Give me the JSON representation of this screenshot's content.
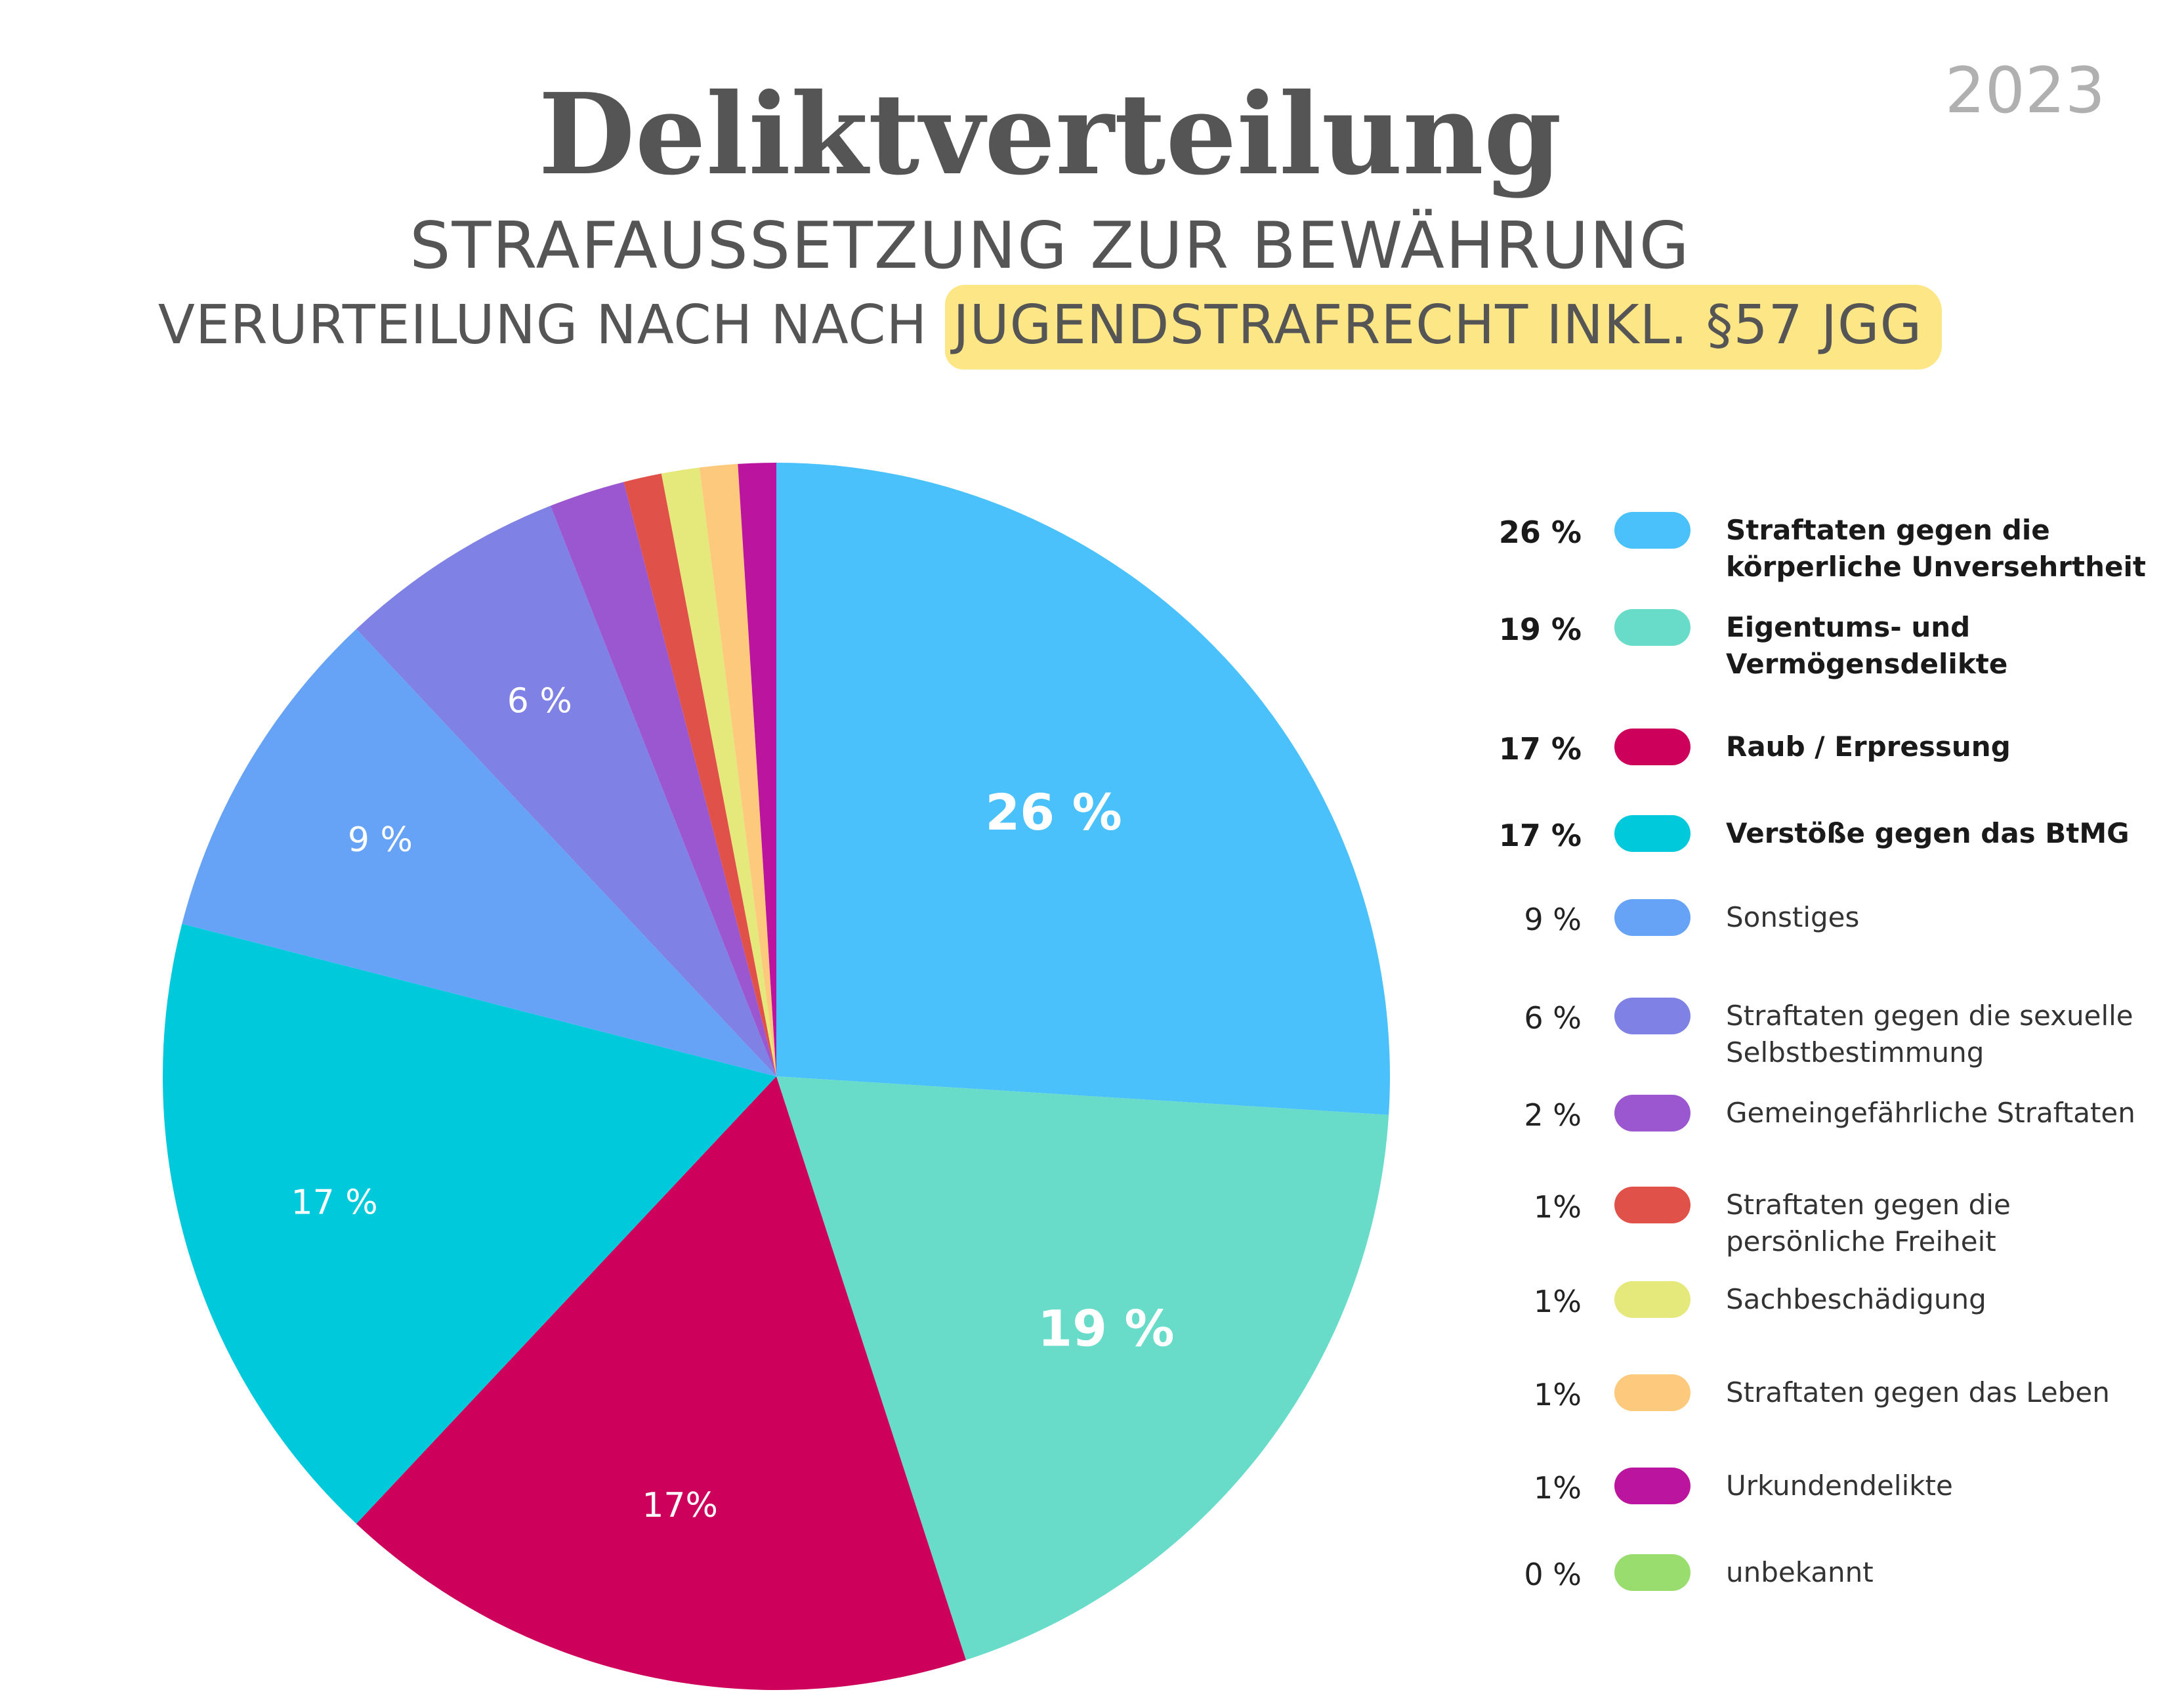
{
  "year": "2023",
  "title": "Deliktverteilung",
  "subtitle": "STRAFAUSSETZUNG ZUR BEWÄHRUNG",
  "subtitle2_prefix": "VERURTEILUNG NACH NACH",
  "subtitle2_highlight": "JUGENDSTRAFRECHT INKL. §57 JGG",
  "colors": {
    "highlight": "#fde685",
    "text": "#555555",
    "year": "#b0b0b0"
  },
  "chart_data": {
    "type": "pie",
    "start": "12 o'clock, clockwise",
    "slices": [
      {
        "name": "Straftaten gegen die körperliche Unversehrtheit",
        "value": 26,
        "legend_pct": "26 %",
        "slice_label": "26 %",
        "color": "#4ac1fb",
        "bold": true
      },
      {
        "name": "Eigentums- und Vermögensdelikte",
        "value": 19,
        "legend_pct": "19 %",
        "slice_label": "19 %",
        "color": "#68dbc9",
        "bold": true
      },
      {
        "name": "Raub / Erpressung",
        "value": 17,
        "legend_pct": "17 %",
        "slice_label": "17%",
        "color": "#cd015b",
        "bold": true
      },
      {
        "name": "Verstöße gegen das BtMG",
        "value": 17,
        "legend_pct": "17 %",
        "slice_label": "17 %",
        "color": "#00c9dc",
        "bold": true
      },
      {
        "name": "Sonstiges",
        "value": 9,
        "legend_pct": "9 %",
        "slice_label": "9 %",
        "color": "#66a3f7",
        "bold": false
      },
      {
        "name": "Straftaten gegen die sexuelle Selbstbestimmung",
        "value": 6,
        "legend_pct": "6 %",
        "slice_label": "6 %",
        "color": "#7f81e4",
        "bold": false
      },
      {
        "name": "Gemeingefährliche Straftaten",
        "value": 2,
        "legend_pct": "2 %",
        "slice_label": "",
        "color": "#9b57cf",
        "bold": false
      },
      {
        "name": "Straftaten gegen die persönliche Freiheit",
        "value": 1,
        "legend_pct": "1%",
        "slice_label": "",
        "color": "#e0514a",
        "bold": false
      },
      {
        "name": "Sachbeschädigung",
        "value": 1,
        "legend_pct": "1%",
        "slice_label": "",
        "color": "#e5e87a",
        "bold": false
      },
      {
        "name": "Straftaten gegen das Leben",
        "value": 1,
        "legend_pct": "1%",
        "slice_label": "",
        "color": "#fdc97c",
        "bold": false
      },
      {
        "name": "Urkundendelikte",
        "value": 1,
        "legend_pct": "1%",
        "slice_label": "",
        "color": "#bb149e",
        "bold": false
      },
      {
        "name": "unbekannt",
        "value": 0,
        "legend_pct": "0 %",
        "slice_label": "",
        "color": "#98dd6e",
        "bold": false
      }
    ]
  }
}
